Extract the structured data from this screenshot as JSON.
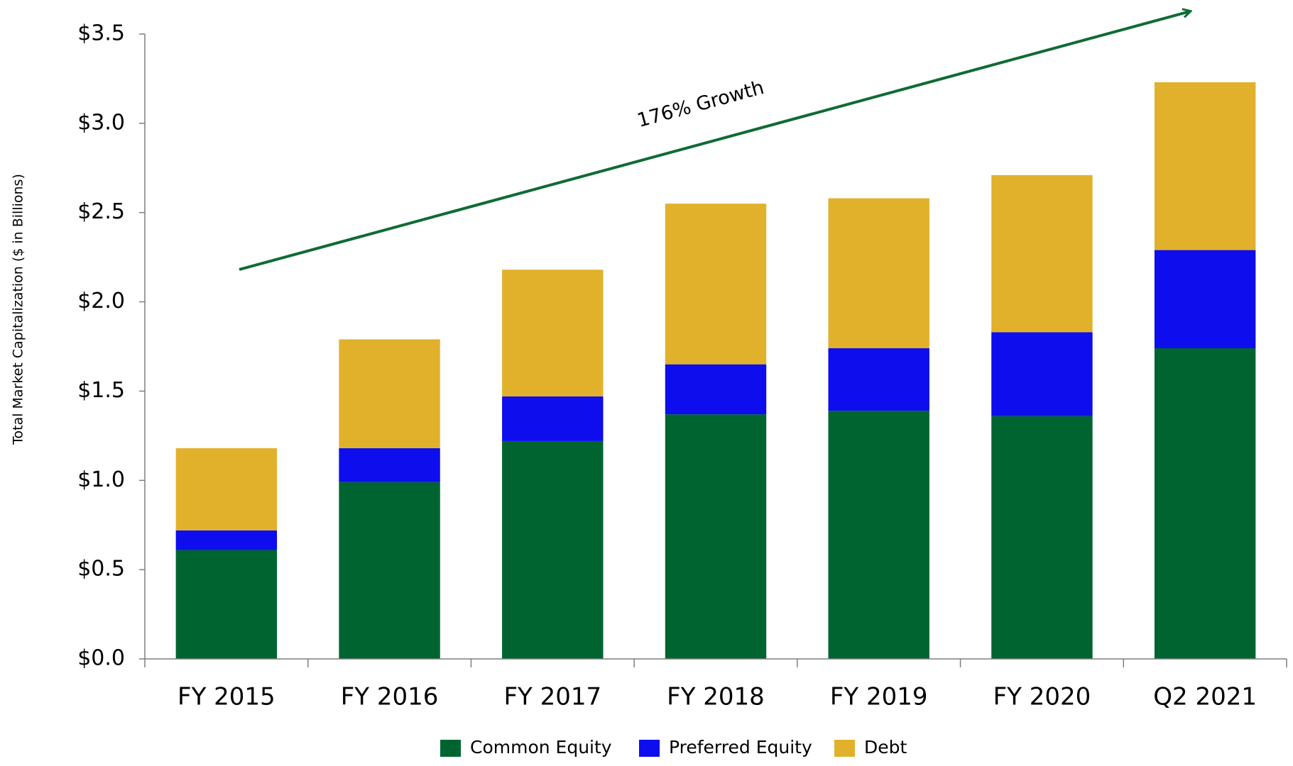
{
  "chart_data": {
    "type": "bar",
    "stacked": true,
    "y_label": "Total Market Capitalization ($ in Billions)",
    "annotation": "176% Growth",
    "categories": [
      "FY 2015",
      "FY 2016",
      "FY 2017",
      "FY 2018",
      "FY 2019",
      "FY 2020",
      "Q2 2021"
    ],
    "series": [
      {
        "name": "Common Equity",
        "color": "#006430",
        "values": [
          0.61,
          0.99,
          1.22,
          1.37,
          1.39,
          1.36,
          1.74
        ]
      },
      {
        "name": "Preferred Equity",
        "color": "#0d0ded",
        "values": [
          0.11,
          0.19,
          0.25,
          0.28,
          0.35,
          0.47,
          0.55
        ]
      },
      {
        "name": "Debt",
        "color": "#e2b12c",
        "values": [
          0.46,
          0.61,
          0.71,
          0.9,
          0.84,
          0.88,
          0.94
        ]
      }
    ],
    "ylim": [
      0,
      3.5
    ],
    "yticks": [
      {
        "value": 0,
        "label": "$0.0"
      },
      {
        "value": 0.5,
        "label": "$0.5"
      },
      {
        "value": 1,
        "label": "$1.0"
      },
      {
        "value": 1.5,
        "label": "$1.5"
      },
      {
        "value": 2,
        "label": "$2.0"
      },
      {
        "value": 2.5,
        "label": "$2.5"
      },
      {
        "value": 3,
        "label": "$3.0"
      },
      {
        "value": 3.5,
        "label": "$3.5"
      }
    ],
    "grid": false,
    "legend": "bottom"
  }
}
